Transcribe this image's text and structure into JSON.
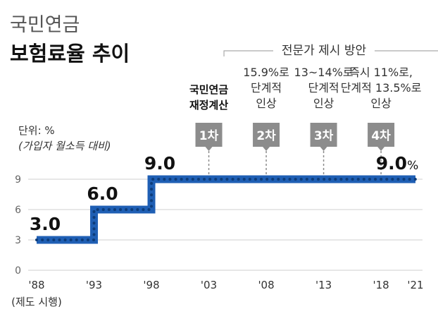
{
  "chart_data": {
    "type": "line",
    "title_line1": "국민연금",
    "title_line2": "보험료율 추이",
    "unit_label": "단위: %",
    "unit_note": "(가입자 월소득 대비)",
    "yticks": [
      0,
      3,
      6,
      9
    ],
    "ylim": [
      0,
      10
    ],
    "xlim": [
      1988,
      2021
    ],
    "x_ticks": [
      {
        "year": 1988,
        "label": "'88"
      },
      {
        "year": 1993,
        "label": "'93"
      },
      {
        "year": 1998,
        "label": "'98"
      },
      {
        "year": 2003,
        "label": "'03"
      },
      {
        "year": 2008,
        "label": "'08"
      },
      {
        "year": 2013,
        "label": "'13"
      },
      {
        "year": 2018,
        "label": "'18"
      },
      {
        "year": 2021,
        "label": "'21"
      }
    ],
    "x_first_note": "(제도 시행)",
    "series": [
      {
        "color": "#1f5fb4",
        "points": [
          [
            1988,
            3.0
          ],
          [
            1993,
            3.0
          ],
          [
            1993,
            6.0
          ],
          [
            1998,
            6.0
          ],
          [
            1998,
            9.0
          ],
          [
            2021,
            9.0
          ]
        ]
      }
    ],
    "value_labels": [
      {
        "year": 1988,
        "value": 3.0,
        "text": "3.0"
      },
      {
        "year": 1993,
        "value": 6.0,
        "text": "6.0"
      },
      {
        "year": 1998,
        "value": 9.0,
        "text": "9.0"
      },
      {
        "year": 2021,
        "value": 9.0,
        "text": "9.0",
        "suffix": "%"
      }
    ],
    "bracket_label": "전문가 제시 방안",
    "markers": [
      {
        "year": 2003,
        "badge": "1차",
        "lines": [
          "국민연금",
          "재정계산"
        ],
        "bold": true
      },
      {
        "year": 2008,
        "badge": "2차",
        "lines": [
          "15.9%로",
          "단계적",
          "인상"
        ],
        "bold": false
      },
      {
        "year": 2013,
        "badge": "3차",
        "lines": [
          "13~14%로",
          "단계적",
          "인상"
        ],
        "bold": false
      },
      {
        "year": 2018,
        "badge": "4차",
        "lines": [
          "즉시 11%로,",
          "단계적 13.5%로",
          "인상"
        ],
        "bold": false
      }
    ],
    "colors": {
      "line": "#1f5fb4",
      "line_dots": "#0d3c7a",
      "badge_fill": "#8c8c8c",
      "badge_text": "#ffffff",
      "grid": "#cfcfcf",
      "axis_text": "#666666",
      "title_light": "#555555",
      "title_bold": "#111111",
      "value_text": "#111111"
    }
  }
}
